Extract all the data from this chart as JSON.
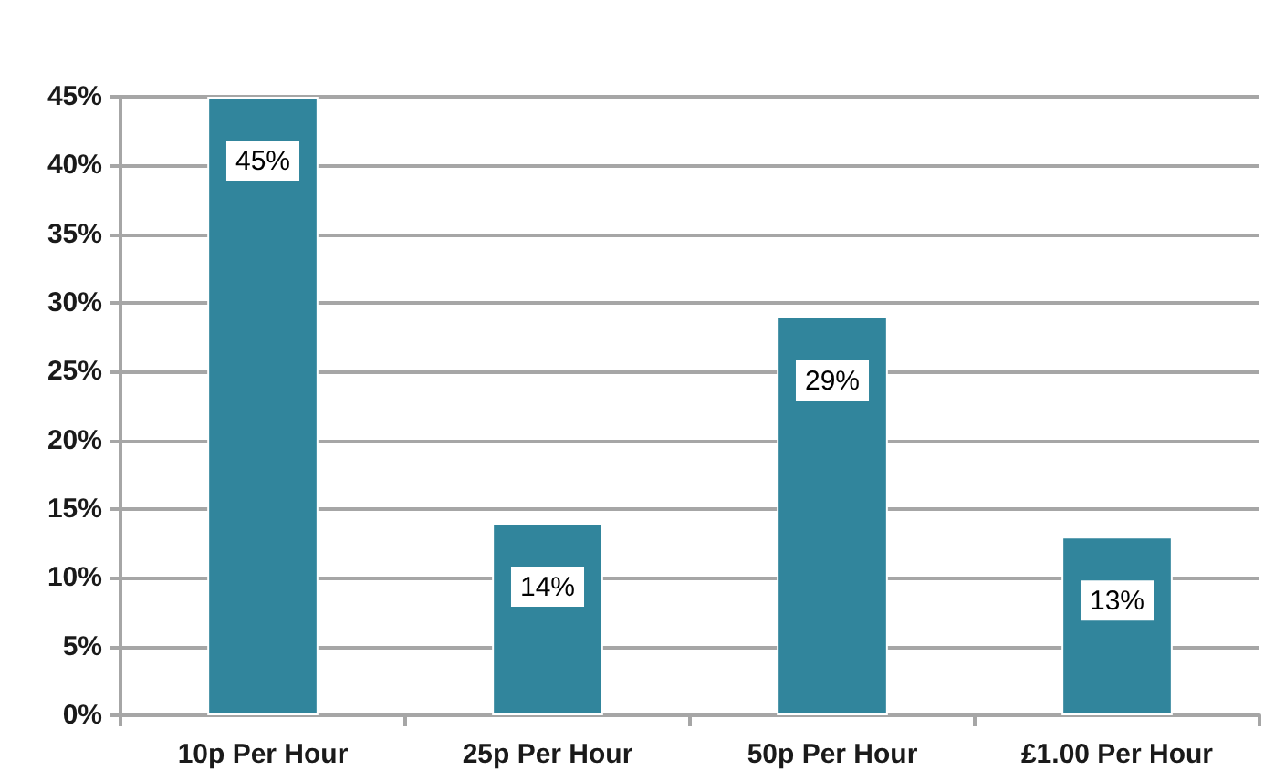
{
  "chart_data": {
    "type": "bar",
    "categories": [
      "10p Per Hour",
      "25p Per Hour",
      "50p Per Hour",
      "£1.00 Per Hour"
    ],
    "values": [
      45,
      14,
      29,
      13
    ],
    "color": "#31859c",
    "value_labels": [
      "45%",
      "14%",
      "29%",
      "13%"
    ],
    "ylim": [
      0,
      45
    ],
    "yticks": [
      {
        "value": 0,
        "label": "0%"
      },
      {
        "value": 5,
        "label": "5%"
      },
      {
        "value": 10,
        "label": "10%"
      },
      {
        "value": 15,
        "label": "15%"
      },
      {
        "value": 20,
        "label": "20%"
      },
      {
        "value": 25,
        "label": "25%"
      },
      {
        "value": 30,
        "label": "30%"
      },
      {
        "value": 35,
        "label": "35%"
      },
      {
        "value": 40,
        "label": "40%"
      },
      {
        "value": 45,
        "label": "45%"
      }
    ],
    "grid": true
  }
}
